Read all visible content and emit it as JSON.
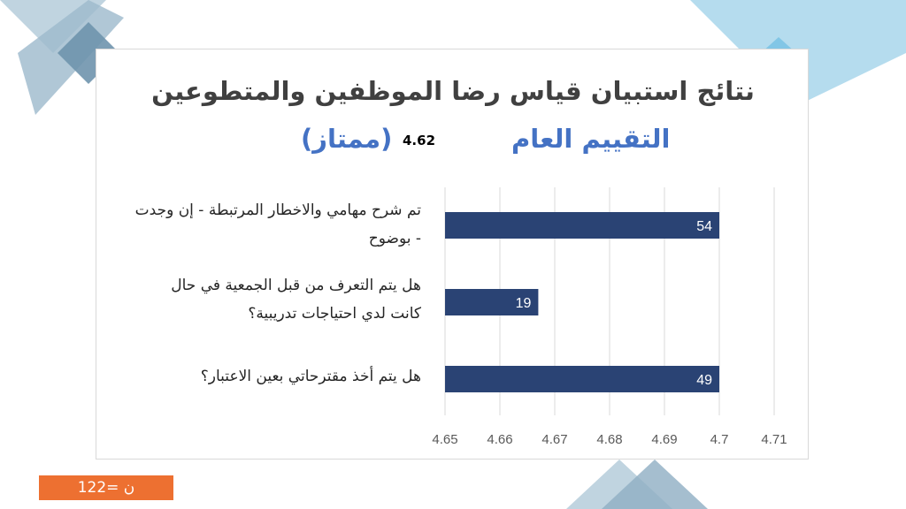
{
  "title": "نتائج استبيان قياس رضا الموظفين والمتطوعين",
  "overall": {
    "label": "التقييم العام",
    "value": "4.62",
    "rating": "(ممتاز)"
  },
  "chart_data": {
    "type": "bar",
    "orientation": "horizontal",
    "categories": [
      "تم شرح مهامي والاخطار المرتبطة - إن وجدت - بوضوح",
      "هل يتم التعرف من قبل الجمعية في حال كانت لدي احتياجات تدريبية؟",
      "هل يتم أخذ مقترحاتي بعين الاعتبار؟"
    ],
    "category_lines": [
      [
        "تم شرح مهامي والاخطار المرتبطة - إن وجدت",
        "- بوضوح"
      ],
      [
        "هل يتم التعرف من قبل الجمعية في حال",
        "كانت لدي احتياجات تدريبية؟"
      ],
      [
        "هل يتم أخذ مقترحاتي بعين الاعتبار؟"
      ]
    ],
    "values": [
      4.7,
      4.667,
      4.7
    ],
    "data_labels": [
      "54",
      "19",
      "49"
    ],
    "xlim": [
      4.65,
      4.71
    ],
    "x_ticks": [
      "4.65",
      "4.66",
      "4.67",
      "4.68",
      "4.69",
      "4.7",
      "4.71"
    ],
    "bar_color": "#2a4374",
    "grid": true,
    "legend": "none"
  },
  "footer": {
    "sample_size": "ن =122"
  },
  "colors": {
    "title": "#404040",
    "accent_blue": "#4472c4",
    "footer_orange": "#ed7031",
    "deco_blue_light": "#add8ec",
    "deco_blue_gray": "#8eaec3"
  }
}
